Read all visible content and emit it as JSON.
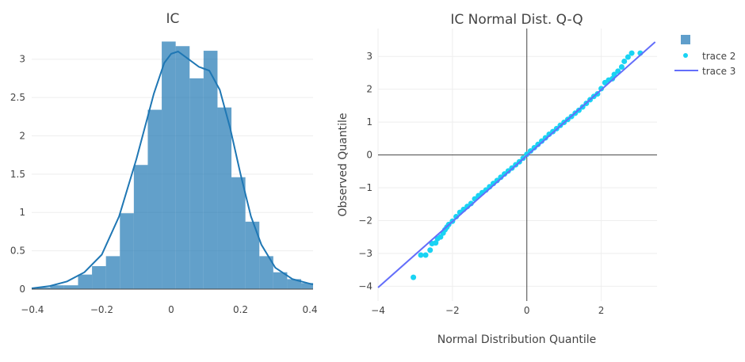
{
  "chart_data": [
    {
      "type": "bar",
      "title": "IC",
      "xlabel": "",
      "ylabel": "",
      "xlim": [
        -0.402,
        0.409
      ],
      "ylim": [
        0,
        3.4
      ],
      "grid": true,
      "xticks": [
        -0.4,
        -0.2,
        0,
        0.2,
        0.4
      ],
      "xtick_labels": [
        "−0.4",
        "−0.2",
        "0",
        "0.2",
        "0.4"
      ],
      "yticks": [
        0,
        0.5,
        1,
        1.5,
        2,
        2.5,
        3
      ],
      "ytick_labels": [
        "0",
        "0.5",
        "1",
        "1.5",
        "2",
        "2.5",
        "3"
      ],
      "histogram": {
        "bin_start": -0.389,
        "bin_width": 0.0402,
        "values": [
          0.02,
          0.05,
          0.05,
          0.19,
          0.3,
          0.43,
          0.99,
          1.62,
          2.34,
          3.23,
          3.17,
          2.75,
          3.11,
          2.37,
          1.46,
          0.88,
          0.43,
          0.22,
          0.13,
          0.08
        ],
        "color": "#1f77b4",
        "opacity": 0.7
      },
      "kde": {
        "color": "#1f77b4",
        "x": [
          -0.402,
          -0.35,
          -0.3,
          -0.25,
          -0.2,
          -0.15,
          -0.1,
          -0.05,
          -0.02,
          0.0,
          0.02,
          0.05,
          0.08,
          0.11,
          0.14,
          0.17,
          0.2,
          0.23,
          0.26,
          0.3,
          0.35,
          0.4,
          0.409
        ],
        "y": [
          0.01,
          0.04,
          0.1,
          0.22,
          0.45,
          0.95,
          1.7,
          2.55,
          2.95,
          3.07,
          3.1,
          3.0,
          2.9,
          2.85,
          2.6,
          2.1,
          1.5,
          0.95,
          0.58,
          0.28,
          0.13,
          0.07,
          0.06
        ]
      }
    },
    {
      "type": "scatter",
      "title": "IC Normal Dist. Q-Q",
      "xlabel": "Normal Distribution Quantile",
      "ylabel": "Observed Quantile",
      "xlim": [
        -4,
        3.5
      ],
      "ylim": [
        -4.45,
        3.85
      ],
      "grid": true,
      "legend": "top-right",
      "xticks": [
        -4,
        -2,
        0,
        2
      ],
      "xtick_labels": [
        "−4",
        "−2",
        "0",
        "2"
      ],
      "yticks": [
        -4,
        -3,
        -2,
        -1,
        0,
        1,
        2,
        3
      ],
      "ytick_labels": [
        "−4",
        "−3",
        "−2",
        "−1",
        "0",
        "1",
        "2",
        "3"
      ],
      "legend_entries": [
        {
          "name": "",
          "kind": "bar",
          "color": "#5f9ecb"
        },
        {
          "name": "trace 2",
          "kind": "marker",
          "color": "#19d3f3"
        },
        {
          "name": "trace 3",
          "kind": "line",
          "color": "#636efa"
        }
      ],
      "series": [
        {
          "name": "trace 2",
          "color": "#19d3f3",
          "points": [
            [
              -3.05,
              -3.73
            ],
            [
              -2.85,
              -3.05
            ],
            [
              -2.72,
              -3.05
            ],
            [
              -2.6,
              -2.9
            ],
            [
              -2.55,
              -2.7
            ],
            [
              -2.45,
              -2.68
            ],
            [
              -2.4,
              -2.55
            ],
            [
              -2.32,
              -2.5
            ],
            [
              -2.25,
              -2.38
            ],
            [
              -2.2,
              -2.28
            ],
            [
              -2.15,
              -2.2
            ],
            [
              -2.1,
              -2.12
            ],
            [
              -2.0,
              -2.02
            ],
            [
              -1.9,
              -1.88
            ],
            [
              -1.8,
              -1.75
            ],
            [
              -1.7,
              -1.66
            ],
            [
              -1.6,
              -1.57
            ],
            [
              -1.5,
              -1.48
            ],
            [
              -1.4,
              -1.34
            ],
            [
              -1.3,
              -1.24
            ],
            [
              -1.2,
              -1.15
            ],
            [
              -1.1,
              -1.07
            ],
            [
              -1.0,
              -0.97
            ],
            [
              -0.9,
              -0.87
            ],
            [
              -0.8,
              -0.78
            ],
            [
              -0.7,
              -0.68
            ],
            [
              -0.6,
              -0.58
            ],
            [
              -0.5,
              -0.49
            ],
            [
              -0.4,
              -0.4
            ],
            [
              -0.3,
              -0.3
            ],
            [
              -0.2,
              -0.21
            ],
            [
              -0.1,
              -0.1
            ],
            [
              0.0,
              0.02
            ],
            [
              0.1,
              0.12
            ],
            [
              0.2,
              0.22
            ],
            [
              0.3,
              0.32
            ],
            [
              0.4,
              0.42
            ],
            [
              0.5,
              0.52
            ],
            [
              0.6,
              0.63
            ],
            [
              0.7,
              0.71
            ],
            [
              0.8,
              0.8
            ],
            [
              0.9,
              0.9
            ],
            [
              1.0,
              0.99
            ],
            [
              1.1,
              1.08
            ],
            [
              1.2,
              1.17
            ],
            [
              1.3,
              1.27
            ],
            [
              1.4,
              1.36
            ],
            [
              1.5,
              1.46
            ],
            [
              1.6,
              1.57
            ],
            [
              1.7,
              1.68
            ],
            [
              1.8,
              1.78
            ],
            [
              1.9,
              1.86
            ],
            [
              2.0,
              2.02
            ],
            [
              2.1,
              2.2
            ],
            [
              2.2,
              2.28
            ],
            [
              2.3,
              2.32
            ],
            [
              2.35,
              2.45
            ],
            [
              2.45,
              2.55
            ],
            [
              2.55,
              2.68
            ],
            [
              2.62,
              2.85
            ],
            [
              2.72,
              2.98
            ],
            [
              2.82,
              3.1
            ],
            [
              3.05,
              3.1
            ]
          ]
        },
        {
          "name": "trace 3",
          "color": "#636efa",
          "points": [
            [
              -4,
              -4.04
            ],
            [
              3.45,
              3.44
            ]
          ]
        }
      ]
    }
  ]
}
